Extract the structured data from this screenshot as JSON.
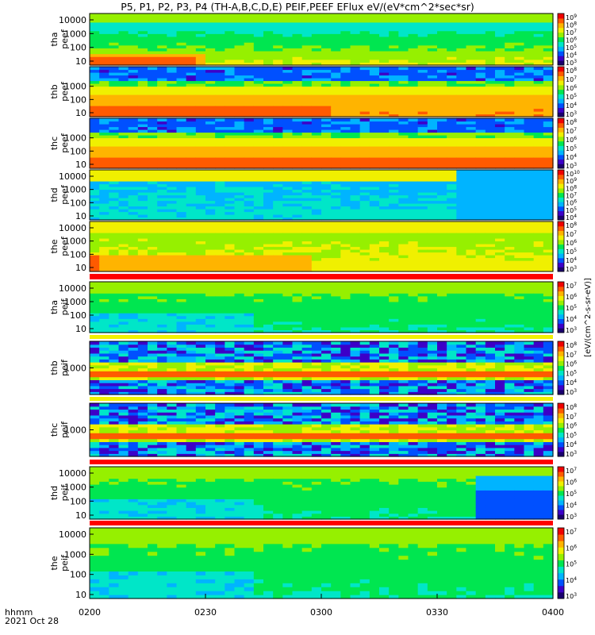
{
  "title": "P5, P1, P2, P3, P4 (TH-A,B,C,D,E) PEIF,PEEF EFlux eV/(eV*cm^2*sec*sr)",
  "time_axis": {
    "label_line1": "hhmm",
    "label_line2": "2021 Oct 28",
    "ticks": [
      "0200",
      "0230",
      "0300",
      "0330",
      "0400"
    ]
  },
  "colorbar_label": "[eV/(cm^2-s-sr-eV)]",
  "chart_data": [
    {
      "type": "heatmap",
      "probe": "tha",
      "species": "peef",
      "y_ticks": [
        "10",
        "100",
        "1000",
        "10000"
      ],
      "log_y": true,
      "cbar_ticks": [
        "10^3",
        "10^4",
        "10^5",
        "10^6",
        "10^7",
        "10^8",
        "10^9"
      ],
      "low_energy_hot_until": "0223"
    },
    {
      "type": "heatmap",
      "probe": "thb",
      "species": "peef",
      "y_ticks": [
        "10",
        "100",
        "1000"
      ],
      "log_y": true,
      "cbar_ticks": [
        "10^3",
        "10^4",
        "10^5",
        "10^6",
        "10^7",
        "10^8"
      ]
    },
    {
      "type": "heatmap",
      "probe": "thc",
      "species": "peef",
      "y_ticks": [
        "10",
        "100",
        "1000"
      ],
      "log_y": true,
      "cbar_ticks": [
        "10^3",
        "10^4",
        "10^5",
        "10^6",
        "10^7",
        "10^8"
      ]
    },
    {
      "type": "heatmap",
      "probe": "thd",
      "species": "peef",
      "y_ticks": [
        "10",
        "100",
        "1000",
        "10000"
      ],
      "log_y": true,
      "cbar_ticks": [
        "10^4",
        "10^5",
        "10^6",
        "10^7",
        "10^8",
        "10^9",
        "10^10"
      ]
    },
    {
      "type": "heatmap",
      "probe": "the",
      "species": "peef",
      "y_ticks": [
        "10",
        "100",
        "1000",
        "10000"
      ],
      "log_y": true,
      "cbar_ticks": [
        "10^3",
        "10^4",
        "10^5",
        "10^6",
        "10^7",
        "10^8"
      ]
    },
    {
      "type": "heatmap",
      "probe": "tha",
      "species": "peif",
      "y_ticks": [
        "10",
        "100",
        "1000",
        "10000"
      ],
      "log_y": true,
      "cbar_ticks": [
        "10^3",
        "10^4",
        "10^5",
        "10^6",
        "10^7"
      ]
    },
    {
      "type": "heatmap",
      "probe": "thb",
      "species": "peif",
      "y_ticks": [
        "1000"
      ],
      "log_y": true,
      "cbar_ticks": [
        "10^3",
        "10^4",
        "10^5",
        "10^6",
        "10^7",
        "10^8"
      ]
    },
    {
      "type": "heatmap",
      "probe": "thc",
      "species": "peif",
      "y_ticks": [
        "1000"
      ],
      "log_y": true,
      "cbar_ticks": [
        "10^3",
        "10^4",
        "10^5",
        "10^6",
        "10^7",
        "10^8"
      ]
    },
    {
      "type": "heatmap",
      "probe": "thd",
      "species": "peif",
      "y_ticks": [
        "10",
        "100",
        "1000",
        "10000"
      ],
      "log_y": true,
      "cbar_ticks": [
        "10^3",
        "10^4",
        "10^5",
        "10^6",
        "10^7"
      ]
    },
    {
      "type": "heatmap",
      "probe": "the",
      "species": "peif",
      "y_ticks": [
        "10",
        "100",
        "1000",
        "10000"
      ],
      "log_y": true,
      "cbar_ticks": [
        "10^3",
        "10^4",
        "10^5",
        "10^6",
        "10^7"
      ]
    }
  ],
  "colors": {
    "scale": [
      "#1a006e",
      "#3c00c8",
      "#0050ff",
      "#00b4ff",
      "#00e6c8",
      "#00e650",
      "#96f000",
      "#f0f000",
      "#ffb400",
      "#ff5a00",
      "#f00000"
    ]
  }
}
